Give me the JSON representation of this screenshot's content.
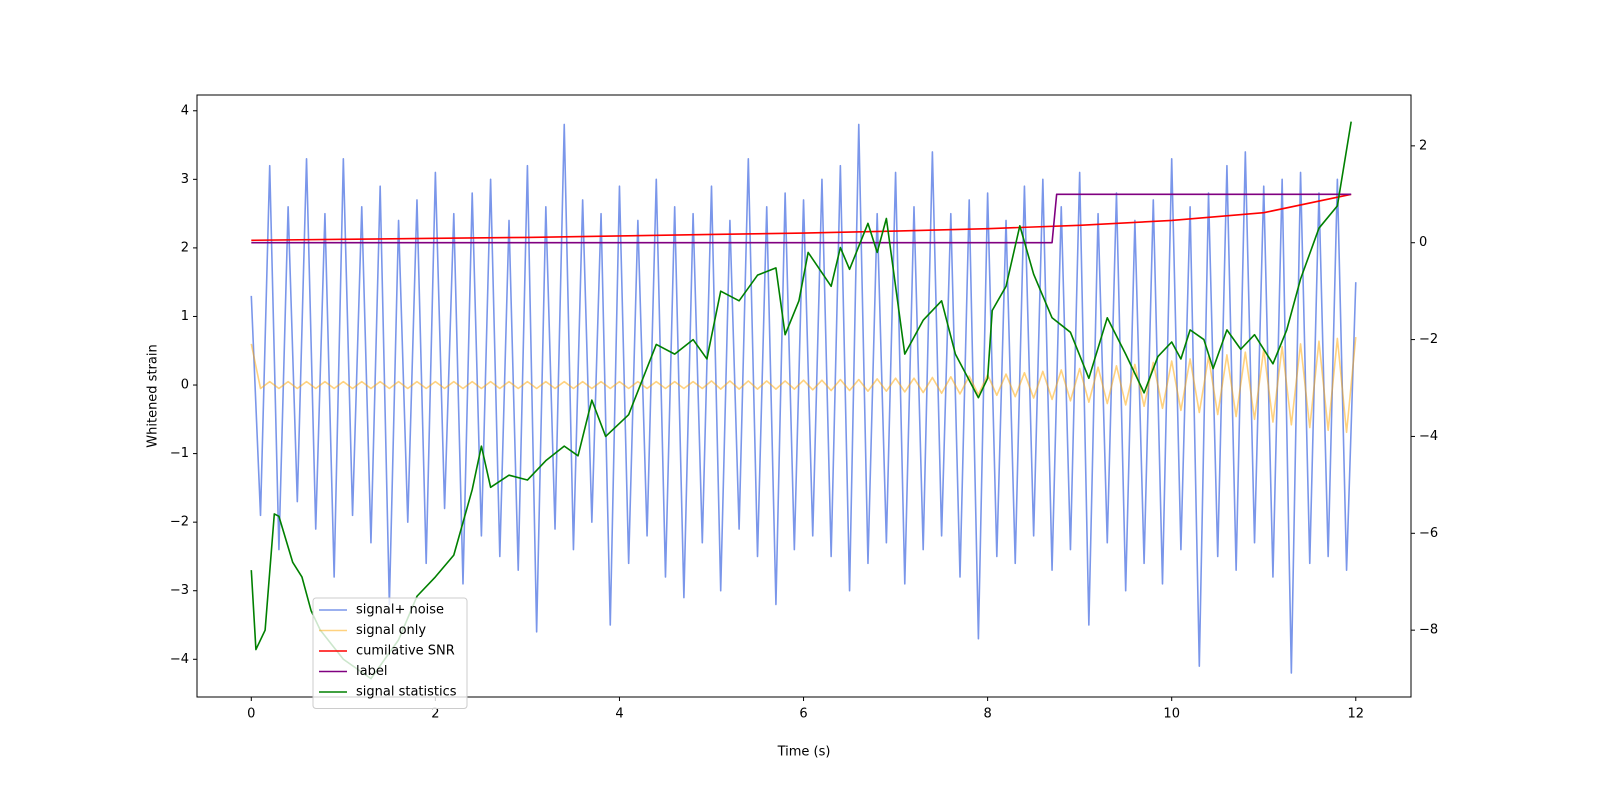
{
  "chart_data": {
    "type": "line",
    "xlabel": "Time (s)",
    "ylabel": "Whitened strain",
    "xlim": [
      -0.59,
      12.6
    ],
    "ylim": [
      -4.55,
      4.23
    ],
    "y2lim": [
      -9.38,
      3.05
    ],
    "xticks": [
      0,
      2,
      4,
      6,
      8,
      10,
      12
    ],
    "yticks": [
      {
        "value": -4,
        "label": "−4"
      },
      {
        "value": -3,
        "label": "−3"
      },
      {
        "value": -2,
        "label": "−2"
      },
      {
        "value": -1,
        "label": "−1"
      },
      0,
      1,
      2,
      3,
      4
    ],
    "y2ticks": [
      {
        "value": -8,
        "label": "−8"
      },
      {
        "value": -6,
        "label": "−6"
      },
      {
        "value": -4,
        "label": "−4"
      },
      {
        "value": -2,
        "label": "−2"
      },
      0,
      2
    ],
    "legend_loc": "lower left",
    "x": [
      0,
      0.1,
      0.2,
      0.3,
      0.4,
      0.5,
      0.6,
      0.7,
      0.8,
      0.9,
      1,
      1.1,
      1.2,
      1.3,
      1.4,
      1.5,
      1.6,
      1.7,
      1.8,
      1.9,
      2,
      2.1,
      2.2,
      2.3,
      2.4,
      2.5,
      2.6,
      2.7,
      2.8,
      2.9,
      3,
      3.1,
      3.2,
      3.3,
      3.4,
      3.5,
      3.6,
      3.7,
      3.8,
      3.9,
      4,
      4.1,
      4.2,
      4.3,
      4.4,
      4.5,
      4.6,
      4.7,
      4.8,
      4.9,
      5,
      5.1,
      5.2,
      5.3,
      5.4,
      5.5,
      5.6,
      5.7,
      5.8,
      5.9,
      6,
      6.1,
      6.2,
      6.3,
      6.4,
      6.5,
      6.6,
      6.7,
      6.8,
      6.9,
      7,
      7.1,
      7.2,
      7.3,
      7.4,
      7.5,
      7.6,
      7.7,
      7.8,
      7.9,
      8,
      8.1,
      8.2,
      8.3,
      8.4,
      8.5,
      8.6,
      8.7,
      8.8,
      8.9,
      9,
      9.1,
      9.2,
      9.3,
      9.4,
      9.5,
      9.6,
      9.7,
      9.8,
      9.9,
      10,
      10.1,
      10.2,
      10.3,
      10.4,
      10.5,
      10.6,
      10.7,
      10.8,
      10.9,
      11,
      11.1,
      11.2,
      11.3,
      11.4,
      11.5,
      11.6,
      11.7,
      11.8,
      11.9,
      12
    ],
    "series": [
      {
        "name": "signal+ noise",
        "color": "royalblue",
        "alpha": 0.7,
        "values": [
          1.3,
          -1.9,
          3.2,
          -2.4,
          2.6,
          -1.7,
          3.3,
          -2.1,
          2.5,
          -2.8,
          3.3,
          -1.9,
          2.6,
          -2.3,
          2.9,
          -3.2,
          2.4,
          -2.0,
          2.7,
          -2.6,
          3.1,
          -1.8,
          2.5,
          -2.9,
          2.8,
          -2.2,
          3.0,
          -2.5,
          2.4,
          -2.7,
          3.2,
          -3.6,
          2.6,
          -2.1,
          3.8,
          -2.4,
          2.7,
          -2.0,
          2.5,
          -3.5,
          2.9,
          -2.6,
          2.4,
          -2.2,
          3.0,
          -2.8,
          2.6,
          -3.1,
          2.5,
          -2.3,
          2.9,
          -3.0,
          2.4,
          -2.1,
          3.3,
          -2.5,
          2.6,
          -3.2,
          2.8,
          -2.4,
          2.7,
          -2.2,
          3.0,
          -2.5,
          3.2,
          -3.0,
          3.8,
          -2.6,
          2.5,
          -2.3,
          3.1,
          -2.9,
          2.6,
          -2.4,
          3.4,
          -2.2,
          2.5,
          -2.8,
          2.7,
          -3.7,
          2.8,
          -2.5,
          2.4,
          -2.6,
          2.9,
          -2.2,
          3.0,
          -2.7,
          2.6,
          -2.4,
          3.1,
          -3.5,
          2.5,
          -2.3,
          2.8,
          -3.0,
          2.4,
          -2.6,
          2.7,
          -2.9,
          3.3,
          -2.4,
          2.6,
          -4.1,
          2.8,
          -2.5,
          3.2,
          -2.7,
          3.4,
          -2.3,
          2.9,
          -2.8,
          3.0,
          -4.2,
          3.1,
          -2.6,
          2.8,
          -2.5,
          3.0,
          -2.7,
          1.5
        ]
      },
      {
        "name": "signal only",
        "color": "orange",
        "alpha": 0.5,
        "values": [
          0.6,
          -0.05,
          0.05,
          -0.05,
          0.05,
          -0.05,
          0.05,
          -0.05,
          0.05,
          -0.05,
          0.05,
          -0.05,
          0.05,
          -0.05,
          0.05,
          -0.05,
          0.05,
          -0.05,
          0.05,
          -0.05,
          0.05,
          -0.05,
          0.05,
          -0.05,
          0.05,
          -0.05,
          0.05,
          -0.05,
          0.05,
          -0.05,
          0.05,
          -0.05,
          0.05,
          -0.05,
          0.05,
          -0.05,
          0.05,
          -0.05,
          0.05,
          -0.05,
          0.05,
          -0.05,
          0.05,
          -0.05,
          0.05,
          -0.05,
          0.05,
          -0.05,
          0.05,
          -0.05,
          0.06,
          -0.06,
          0.06,
          -0.06,
          0.06,
          -0.06,
          0.06,
          -0.06,
          0.06,
          -0.06,
          0.07,
          -0.07,
          0.07,
          -0.08,
          0.08,
          -0.08,
          0.08,
          -0.09,
          0.09,
          -0.09,
          0.1,
          -0.1,
          0.1,
          -0.11,
          0.11,
          -0.12,
          0.12,
          -0.13,
          0.13,
          -0.14,
          0.15,
          -0.15,
          0.16,
          -0.17,
          0.18,
          -0.19,
          0.2,
          -0.21,
          0.22,
          -0.23,
          0.24,
          -0.25,
          0.26,
          -0.27,
          0.28,
          -0.29,
          0.3,
          -0.31,
          0.33,
          -0.34,
          0.35,
          -0.37,
          0.38,
          -0.4,
          0.41,
          -0.43,
          0.44,
          -0.46,
          0.48,
          -0.5,
          0.52,
          -0.54,
          0.56,
          -0.58,
          0.6,
          -0.62,
          0.64,
          -0.66,
          0.68,
          -0.69,
          0.7
        ]
      },
      {
        "name": "cumilative SNR",
        "color": "red",
        "alpha": 1,
        "axis": "y2",
        "x": [
          0,
          1,
          2,
          3,
          4,
          5,
          6,
          7,
          8,
          9,
          10,
          11,
          11.95
        ],
        "values": [
          0.05,
          0.07,
          0.09,
          0.11,
          0.14,
          0.17,
          0.2,
          0.24,
          0.29,
          0.36,
          0.46,
          0.62,
          1.0
        ]
      },
      {
        "name": "label",
        "color": "purple",
        "alpha": 1,
        "axis": "y2",
        "x": [
          0,
          8.7,
          8.75,
          11.95
        ],
        "values": [
          0,
          0,
          1,
          1
        ]
      },
      {
        "name": "signal statistics",
        "color": "green",
        "alpha": 1,
        "axis": "y2",
        "x": [
          0,
          0.05,
          0.15,
          0.25,
          0.3,
          0.45,
          0.55,
          0.65,
          0.75,
          1.0,
          1.3,
          1.6,
          1.8,
          2.0,
          2.2,
          2.4,
          2.5,
          2.6,
          2.8,
          3.0,
          3.2,
          3.4,
          3.55,
          3.7,
          3.85,
          4.1,
          4.4,
          4.6,
          4.8,
          4.95,
          5.1,
          5.3,
          5.5,
          5.7,
          5.8,
          5.95,
          6.05,
          6.3,
          6.4,
          6.5,
          6.7,
          6.8,
          6.9,
          7.1,
          7.3,
          7.5,
          7.65,
          7.9,
          8.0,
          8.05,
          8.2,
          8.35,
          8.5,
          8.7,
          8.9,
          9.1,
          9.3,
          9.5,
          9.7,
          9.85,
          10.0,
          10.1,
          10.2,
          10.35,
          10.45,
          10.6,
          10.75,
          10.9,
          11.1,
          11.25,
          11.4,
          11.6,
          11.8,
          11.95
        ],
        "values": [
          -6.76,
          -8.4,
          -8.0,
          -5.6,
          -5.65,
          -6.6,
          -6.9,
          -7.6,
          -8.0,
          -8.6,
          -9.0,
          -8.2,
          -7.3,
          -6.9,
          -6.45,
          -5.1,
          -4.2,
          -5.05,
          -4.8,
          -4.9,
          -4.5,
          -4.2,
          -4.4,
          -3.25,
          -4.0,
          -3.55,
          -2.1,
          -2.3,
          -2.0,
          -2.4,
          -1.0,
          -1.2,
          -0.67,
          -0.52,
          -1.9,
          -1.2,
          -0.2,
          -0.9,
          -0.1,
          -0.55,
          0.4,
          -0.2,
          0.5,
          -2.3,
          -1.6,
          -1.2,
          -2.3,
          -3.2,
          -2.8,
          -1.4,
          -0.9,
          0.35,
          -0.65,
          -1.55,
          -1.85,
          -2.8,
          -1.55,
          -2.3,
          -3.1,
          -2.35,
          -2.05,
          -2.4,
          -1.8,
          -2.0,
          -2.6,
          -1.8,
          -2.2,
          -1.9,
          -2.5,
          -1.8,
          -0.75,
          0.3,
          0.76,
          2.5
        ]
      }
    ]
  }
}
